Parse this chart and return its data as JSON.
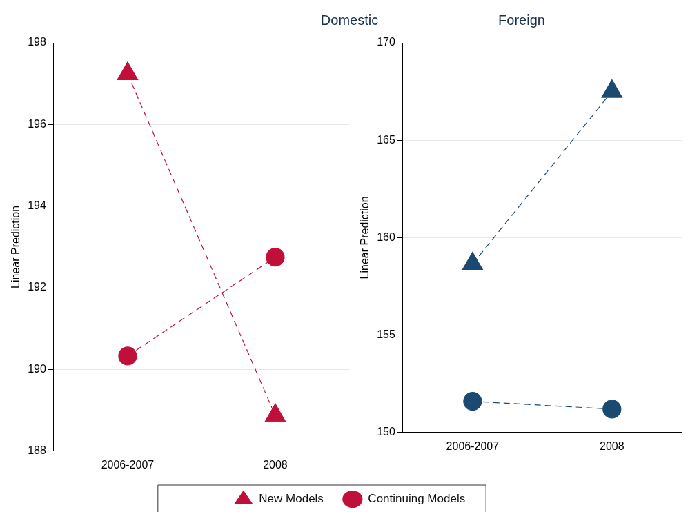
{
  "chart_data": [
    {
      "type": "line",
      "title": "Domestic",
      "ylabel": "Linear Prediction",
      "categories": [
        "2006-2007",
        "2008"
      ],
      "series": [
        {
          "name": "New Models",
          "color": "#c0103a",
          "marker": "triangle",
          "values": [
            197.24,
            188.87
          ]
        },
        {
          "name": "Continuing Models",
          "color": "#c0103a",
          "marker": "circle",
          "values": [
            190.33,
            192.75
          ]
        }
      ],
      "ylim": [
        188,
        198
      ],
      "yticks": [
        188,
        190,
        192,
        194,
        196,
        198
      ],
      "grid": "y",
      "line_style": "dashed",
      "legend": "bottom"
    },
    {
      "type": "line",
      "title": "Foreign",
      "ylabel": "Linear Prediction",
      "categories": [
        "2006-2007",
        "2008"
      ],
      "series": [
        {
          "color": "#1a4a72",
          "marker": "triangle",
          "values": [
            158.65,
            167.5
          ]
        },
        {
          "color": "#1a4a72",
          "marker": "circle",
          "values": [
            151.6,
            151.2
          ]
        }
      ],
      "ylim": [
        150,
        170
      ],
      "yticks": [
        150,
        155,
        160,
        165,
        170
      ],
      "grid": "y",
      "line_style": "dashed"
    }
  ]
}
